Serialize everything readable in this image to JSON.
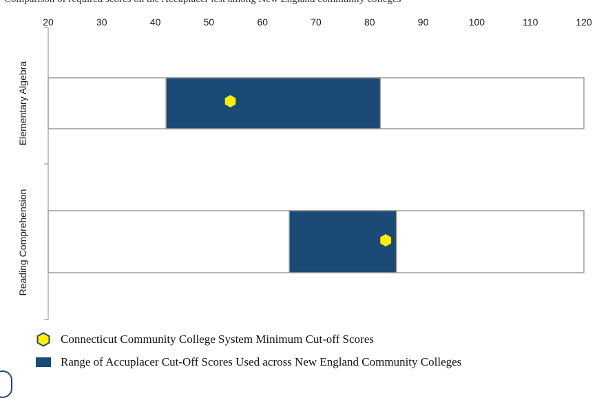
{
  "caption": "Comparison of required scores on the Accuplacer test among New England community colleges",
  "chart_data": {
    "type": "bar",
    "orientation": "horizontal",
    "categories": [
      "Elementary Algebra",
      "Reading Comprehension"
    ],
    "xlim": [
      20,
      120
    ],
    "xticks": [
      "20",
      "30",
      "40",
      "50",
      "60",
      "70",
      "80",
      "90",
      "100",
      "110",
      "120"
    ],
    "series": [
      {
        "name": "Range of Accuplacer Cut-Off Scores Used across New England Community Colleges",
        "ranges": [
          [
            42,
            82
          ],
          [
            65,
            85
          ]
        ],
        "color": "#1a4a75"
      },
      {
        "name": "Connecticut Community College System Minimum Cut-off Scores",
        "values": [
          54,
          83
        ],
        "color": "#ffee00"
      }
    ],
    "grid": false,
    "legend_position": "bottom"
  }
}
